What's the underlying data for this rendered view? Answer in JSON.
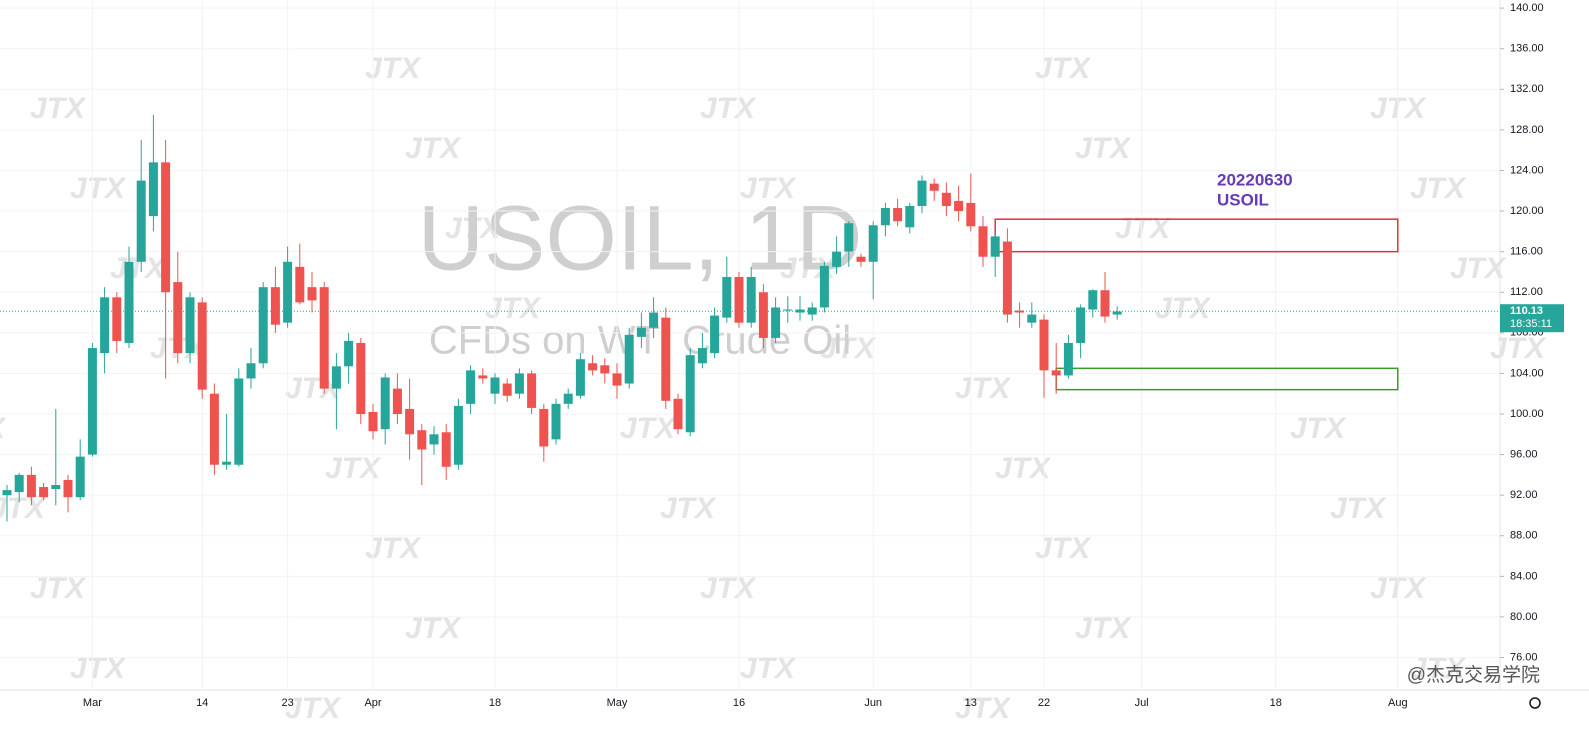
{
  "chart_data": {
    "type": "candlestick",
    "title": "USOIL, 1D",
    "subtitle": "CFDs on WTI Crude Oil",
    "watermark": "JTX",
    "credit": "@杰克交易学院",
    "annotation": [
      "20220630",
      "USOIL"
    ],
    "up_color": "#26a69a",
    "down_color": "#ef5350",
    "categories": [
      null,
      null,
      null,
      null,
      null,
      null,
      null,
      "Mar",
      null,
      null,
      null,
      null,
      null,
      null,
      null,
      null,
      "14",
      null,
      null,
      null,
      null,
      null,
      null,
      "23",
      null,
      null,
      null,
      null,
      null,
      null,
      "Apr",
      null,
      null,
      null,
      null,
      null,
      null,
      null,
      null,
      null,
      "18",
      null,
      null,
      null,
      null,
      null,
      null,
      null,
      null,
      null,
      "May",
      null,
      null,
      null,
      null,
      null,
      null,
      null,
      null,
      null,
      "16",
      null,
      null,
      null,
      null,
      null,
      null,
      null,
      null,
      null,
      null,
      "Jun",
      null,
      null,
      null,
      null,
      null,
      null,
      null,
      "13",
      null,
      null,
      null,
      null,
      null,
      "22",
      null,
      null,
      null,
      null,
      null,
      null,
      null,
      "Jul",
      null,
      null,
      null,
      null,
      null,
      null,
      null,
      null,
      null,
      null,
      "18",
      null,
      null,
      null,
      null,
      null,
      null,
      null,
      null,
      null,
      "Aug",
      null,
      null,
      null,
      null,
      null
    ],
    "open": [
      92.0,
      92.3,
      94.0,
      92.8,
      92.6,
      93.5,
      91.8,
      96.0,
      106.0,
      111.5,
      107.0,
      115.0,
      119.5,
      124.8,
      113.0,
      106.0,
      111.0,
      102.0,
      95.0,
      95.0,
      103.5,
      105.0,
      112.5,
      109.0,
      114.5,
      112.5,
      112.5,
      102.5,
      104.7,
      107.0,
      100.2,
      98.5,
      102.5,
      100.5,
      98.4,
      97.0,
      98.2,
      95.0,
      101.0,
      103.8,
      102.0,
      103.0,
      102.0,
      104.0,
      100.5,
      97.5,
      101.0,
      101.8,
      105.0,
      104.8,
      104.0,
      103.0,
      107.6,
      108.5,
      109.5,
      101.5,
      98.2,
      105.0,
      106.0,
      109.5,
      113.5,
      109.0,
      112.0,
      107.5,
      110.2,
      110.0,
      109.8,
      110.5,
      114.5,
      116.0,
      115.5,
      115.0,
      118.6,
      120.3,
      118.4,
      120.5,
      122.7,
      121.8,
      121.0,
      120.8,
      118.5,
      115.5,
      117.0,
      110.2,
      109.0,
      109.3,
      104.3,
      103.8,
      107.0,
      110.3,
      112.2,
      109.8,
      null,
      null,
      null,
      null,
      null,
      null,
      null,
      null,
      null,
      null,
      null,
      null,
      null,
      null,
      null,
      null,
      null,
      null,
      null,
      null,
      null,
      null,
      null,
      null,
      null,
      null,
      null,
      null
    ],
    "high": [
      93.0,
      94.2,
      94.8,
      93.2,
      100.5,
      94.0,
      97.5,
      107.0,
      112.5,
      112.0,
      116.5,
      127.0,
      129.5,
      127.0,
      116.0,
      112.0,
      111.5,
      103.0,
      100.0,
      104.5,
      106.5,
      113.0,
      114.5,
      116.5,
      116.8,
      114.0,
      113.0,
      106.0,
      108.0,
      107.5,
      101.0,
      104.0,
      104.0,
      103.5,
      99.0,
      98.8,
      99.0,
      101.5,
      104.8,
      104.5,
      104.0,
      103.5,
      104.5,
      104.3,
      101.0,
      101.5,
      102.5,
      106.0,
      105.8,
      105.5,
      105.0,
      108.5,
      110.0,
      111.5,
      110.5,
      102.0,
      106.5,
      108.0,
      110.5,
      115.5,
      114.0,
      114.5,
      112.8,
      111.5,
      111.6,
      111.6,
      111.0,
      115.0,
      117.5,
      119.0,
      115.8,
      119.0,
      120.8,
      121.2,
      120.8,
      123.5,
      123.2,
      122.8,
      122.5,
      123.7,
      119.5,
      118.0,
      118.3,
      111.0,
      111.0,
      109.8,
      107.0,
      107.8,
      110.8,
      112.3,
      114.0,
      110.6,
      null,
      null,
      null,
      null,
      null,
      null,
      null,
      null,
      null,
      null,
      null,
      null,
      null,
      null,
      null,
      null,
      null,
      null,
      null,
      null,
      null,
      null,
      null,
      null,
      null,
      null,
      null,
      null
    ],
    "low": [
      89.4,
      91.3,
      91.0,
      91.5,
      91.0,
      90.3,
      91.5,
      95.8,
      104.0,
      106.0,
      106.5,
      114.0,
      118.0,
      103.5,
      105.0,
      105.0,
      101.5,
      94.0,
      94.5,
      94.8,
      102.5,
      104.5,
      108.0,
      108.5,
      110.8,
      110.0,
      102.0,
      98.5,
      103.0,
      99.0,
      97.5,
      97.0,
      99.0,
      95.5,
      93.0,
      96.0,
      93.5,
      94.5,
      100.0,
      103.0,
      101.0,
      101.2,
      101.5,
      100.0,
      95.3,
      97.0,
      100.5,
      101.5,
      103.8,
      103.0,
      101.5,
      102.5,
      106.5,
      107.5,
      100.5,
      98.0,
      97.8,
      104.5,
      105.5,
      109.0,
      108.5,
      108.5,
      106.5,
      107.0,
      109.0,
      109.2,
      109.2,
      110.0,
      113.8,
      114.5,
      114.5,
      111.3,
      117.5,
      118.5,
      117.8,
      119.8,
      121.0,
      119.5,
      119.0,
      118.0,
      114.5,
      113.5,
      109.0,
      108.5,
      108.5,
      101.6,
      102.0,
      103.5,
      105.5,
      109.5,
      109.0,
      109.3,
      null,
      null,
      null,
      null,
      null,
      null,
      null,
      null,
      null,
      null,
      null,
      null,
      null,
      null,
      null,
      null,
      null,
      null,
      null,
      null,
      null,
      null,
      null,
      null,
      null,
      null,
      null,
      null
    ],
    "close": [
      92.5,
      94.0,
      91.8,
      91.8,
      93.0,
      91.8,
      95.8,
      106.5,
      111.5,
      107.2,
      115.0,
      123.0,
      124.8,
      112.0,
      106.0,
      111.5,
      102.4,
      95.0,
      95.3,
      103.5,
      105.0,
      112.5,
      108.8,
      115.0,
      111.0,
      111.2,
      102.5,
      104.7,
      107.2,
      100.0,
      98.3,
      103.6,
      100.0,
      98.0,
      96.5,
      98.0,
      94.8,
      100.8,
      104.3,
      103.5,
      103.6,
      101.8,
      104.0,
      100.6,
      96.8,
      101.0,
      102.0,
      105.4,
      104.3,
      104.0,
      102.8,
      107.8,
      108.5,
      110.0,
      101.3,
      98.5,
      105.8,
      106.5,
      109.7,
      113.5,
      109.0,
      113.5,
      107.5,
      110.5,
      110.3,
      110.3,
      110.5,
      114.6,
      116.0,
      118.8,
      115.0,
      118.6,
      120.3,
      119.0,
      120.5,
      123.0,
      122.0,
      120.5,
      120.0,
      118.5,
      115.5,
      117.5,
      109.8,
      110.0,
      109.8,
      104.3,
      103.8,
      107.0,
      110.5,
      112.2,
      109.6,
      110.1,
      null,
      null,
      null,
      null,
      null,
      null,
      null,
      null,
      null,
      null,
      null,
      null,
      null,
      null,
      null,
      null,
      null,
      null,
      null,
      null,
      null,
      null,
      null,
      null,
      null,
      null,
      null,
      null
    ],
    "ylim": [
      72.8,
      140.8
    ],
    "yticks": [
      {
        "value": 76,
        "label": "76.00"
      },
      {
        "value": 80,
        "label": "80.00"
      },
      {
        "value": 84,
        "label": "84.00"
      },
      {
        "value": 88,
        "label": "88.00"
      },
      {
        "value": 92,
        "label": "92.00"
      },
      {
        "value": 96,
        "label": "96.00"
      },
      {
        "value": 100,
        "label": "100.00"
      },
      {
        "value": 104,
        "label": "104.00"
      },
      {
        "value": 108,
        "label": "108.00"
      },
      {
        "value": 112,
        "label": "112.00"
      },
      {
        "value": 116,
        "label": "116.00"
      },
      {
        "value": 120,
        "label": "120.00"
      },
      {
        "value": 124,
        "label": "124.00"
      },
      {
        "value": 128,
        "label": "128.00"
      },
      {
        "value": 132,
        "label": "132.00"
      },
      {
        "value": 136,
        "label": "136.00"
      },
      {
        "value": 140,
        "label": "140.00"
      }
    ],
    "last_price": {
      "value": 110.13,
      "label": "110.13"
    },
    "countdown": "18:35:11",
    "zones": [
      {
        "x": [
          81,
          114
        ],
        "y": [
          116,
          119.2
        ],
        "color": "#e0303a"
      },
      {
        "x": [
          86,
          114
        ],
        "y": [
          102.4,
          104.5
        ],
        "color": "#3a9a2a"
      }
    ],
    "grid": true
  }
}
